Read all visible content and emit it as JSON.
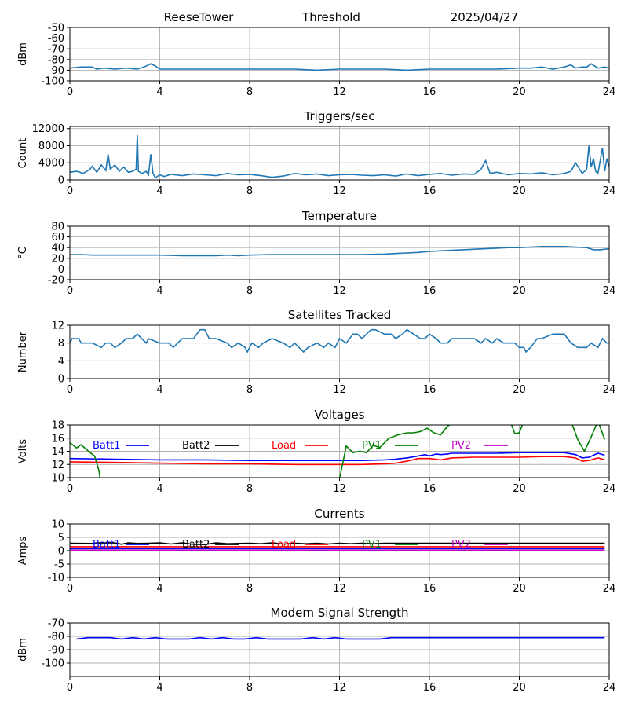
{
  "header": {
    "station": "ReeseTower",
    "label": "Threshold",
    "date": "2025/04/27"
  },
  "colors": {
    "default": "#1f77b4",
    "batt1": "#0000ff",
    "batt2": "#000000",
    "load": "#ff0000",
    "pv1": "#008000",
    "pv2": "#bf00bf"
  },
  "chart_data": [
    {
      "type": "line",
      "title": "",
      "ylabel": "dBm",
      "xlim": [
        0,
        24
      ],
      "ylim": [
        -100,
        -50
      ],
      "xticks": [
        0,
        4,
        8,
        12,
        16,
        20,
        24
      ],
      "yticks": [
        -100,
        -90,
        -80,
        -70,
        -60,
        -50
      ],
      "grid": true,
      "series": [
        {
          "color": "#1f77b4",
          "x": [
            0,
            0.5,
            1.0,
            1.2,
            1.5,
            2.0,
            2.5,
            3.0,
            3.3,
            3.6,
            3.8,
            4.0,
            4.3,
            5,
            6,
            7,
            8,
            9,
            10,
            11,
            12,
            13,
            14,
            15,
            16,
            17,
            18,
            19,
            20,
            20.5,
            21,
            21.5,
            22,
            22.3,
            22.5,
            22.8,
            23.0,
            23.2,
            23.5,
            23.8,
            24
          ],
          "y": [
            -88,
            -87,
            -87,
            -89,
            -88,
            -89,
            -88,
            -89,
            -87,
            -84,
            -86,
            -89,
            -89,
            -89,
            -89,
            -89,
            -89,
            -89,
            -89,
            -90,
            -89,
            -89,
            -89,
            -90,
            -89,
            -89,
            -89,
            -89,
            -88,
            -88,
            -87,
            -89,
            -87,
            -85,
            -88,
            -87,
            -87,
            -84,
            -88,
            -87,
            -88
          ]
        }
      ]
    },
    {
      "type": "line",
      "title": "Triggers/sec",
      "ylabel": "Count",
      "xlim": [
        0,
        24
      ],
      "ylim": [
        0,
        12500
      ],
      "xticks": [
        0,
        4,
        8,
        12,
        16,
        20,
        24
      ],
      "yticks": [
        0,
        4000,
        8000,
        12000
      ],
      "grid": true,
      "series": [
        {
          "color": "#1f77b4",
          "x": [
            0,
            0.3,
            0.6,
            0.9,
            1.0,
            1.2,
            1.4,
            1.6,
            1.7,
            1.8,
            2.0,
            2.2,
            2.4,
            2.6,
            2.8,
            2.95,
            3.0,
            3.05,
            3.2,
            3.4,
            3.5,
            3.6,
            3.7,
            3.8,
            4.0,
            4.2,
            4.5,
            5,
            5.5,
            6,
            6.5,
            7,
            7.5,
            8,
            8.5,
            9,
            9.5,
            10,
            10.5,
            11,
            11.5,
            12,
            12.5,
            13,
            13.5,
            14,
            14.5,
            15,
            15.5,
            16,
            16.5,
            17,
            17.5,
            18,
            18.3,
            18.5,
            18.7,
            19,
            19.5,
            20,
            20.5,
            21,
            21.5,
            22,
            22.3,
            22.5,
            22.8,
            23.0,
            23.1,
            23.2,
            23.3,
            23.4,
            23.5,
            23.7,
            23.8,
            23.9,
            24
          ],
          "y": [
            1800,
            2000,
            1500,
            2500,
            3200,
            1800,
            3500,
            2200,
            6000,
            2500,
            3500,
            2000,
            3000,
            1800,
            2000,
            2500,
            10500,
            2000,
            1500,
            2000,
            1200,
            6000,
            1500,
            500,
            1200,
            800,
            1300,
            1000,
            1400,
            1200,
            1000,
            1500,
            1200,
            1300,
            1000,
            600,
            900,
            1500,
            1200,
            1400,
            1000,
            1200,
            1300,
            1100,
            1000,
            1200,
            900,
            1400,
            1000,
            1300,
            1500,
            1100,
            1400,
            1300,
            2500,
            4500,
            1500,
            1800,
            1200,
            1500,
            1400,
            1700,
            1200,
            1500,
            2000,
            4000,
            1500,
            2500,
            8000,
            3000,
            5000,
            2000,
            1500,
            7500,
            2000,
            5000,
            3000
          ]
        }
      ]
    },
    {
      "type": "line",
      "title": "Temperature",
      "ylabel": "°C",
      "xlim": [
        0,
        24
      ],
      "ylim": [
        -20,
        80
      ],
      "xticks": [
        0,
        4,
        8,
        12,
        16,
        20,
        24
      ],
      "yticks": [
        -20,
        0,
        20,
        40,
        60,
        80
      ],
      "grid": true,
      "series": [
        {
          "color": "#1f77b4",
          "x": [
            0,
            0.5,
            1,
            2,
            3,
            4,
            5,
            6,
            6.5,
            7,
            7.5,
            8,
            9,
            10,
            11,
            12,
            13,
            14,
            14.5,
            15,
            15.5,
            16,
            16.5,
            17,
            17.5,
            18,
            18.5,
            19,
            19.5,
            20,
            20.5,
            21,
            21.5,
            22,
            22.5,
            23,
            23.3,
            23.6,
            24
          ],
          "y": [
            27,
            27,
            26,
            26,
            26,
            26,
            25,
            25,
            25,
            26,
            25,
            26,
            27,
            27,
            27,
            27,
            27,
            28,
            29,
            30,
            31,
            33,
            34,
            35,
            36,
            37,
            38,
            39,
            40,
            40,
            41,
            42,
            42,
            42,
            41,
            40,
            36,
            36,
            38
          ]
        }
      ]
    },
    {
      "type": "line",
      "title": "Satellites Tracked",
      "ylabel": "Number",
      "xlim": [
        0,
        24
      ],
      "ylim": [
        0,
        12
      ],
      "xticks": [
        0,
        4,
        8,
        12,
        16,
        20,
        24
      ],
      "yticks": [
        0,
        4,
        8,
        12
      ],
      "grid": true,
      "series": [
        {
          "color": "#1f77b4",
          "x": [
            0,
            0.1,
            0.4,
            0.5,
            1.0,
            1.4,
            1.6,
            1.8,
            2.0,
            2.3,
            2.5,
            2.8,
            3.0,
            3.2,
            3.4,
            3.5,
            4.0,
            4.4,
            4.6,
            5.0,
            5.5,
            5.8,
            6.0,
            6.2,
            6.5,
            7.0,
            7.2,
            7.5,
            7.8,
            7.9,
            8.0,
            8.1,
            8.4,
            8.6,
            9.0,
            9.5,
            9.8,
            10.0,
            10.4,
            10.6,
            11.0,
            11.3,
            11.5,
            11.8,
            12.0,
            12.3,
            12.6,
            12.8,
            13.0,
            13.4,
            13.6,
            14.0,
            14.3,
            14.5,
            14.8,
            15.0,
            15.3,
            15.6,
            15.8,
            16.0,
            16.3,
            16.5,
            16.8,
            17.0,
            17.5,
            18.0,
            18.3,
            18.5,
            18.8,
            19.0,
            19.3,
            19.5,
            19.8,
            20.0,
            20.2,
            20.3,
            20.5,
            20.8,
            21.0,
            21.5,
            22.0,
            22.3,
            22.6,
            23.0,
            23.2,
            23.5,
            23.7,
            23.9,
            24
          ],
          "y": [
            8,
            9,
            9,
            8,
            8,
            7,
            8,
            8,
            7,
            8,
            9,
            9,
            10,
            9,
            8,
            9,
            8,
            8,
            7,
            9,
            9,
            11,
            11,
            9,
            9,
            8,
            7,
            8,
            7,
            6,
            7,
            8,
            7,
            8,
            9,
            8,
            7,
            8,
            6,
            7,
            8,
            7,
            8,
            7,
            9,
            8,
            10,
            10,
            9,
            11,
            11,
            10,
            10,
            9,
            10,
            11,
            10,
            9,
            9,
            10,
            9,
            8,
            8,
            9,
            9,
            9,
            8,
            9,
            8,
            9,
            8,
            8,
            8,
            7,
            7,
            6,
            7,
            9,
            9,
            10,
            10,
            8,
            7,
            7,
            8,
            7,
            9,
            8,
            8
          ]
        }
      ]
    },
    {
      "type": "line",
      "title": "Voltages",
      "ylabel": "Volts",
      "xlim": [
        0,
        24
      ],
      "ylim": [
        10,
        18
      ],
      "xticks": [
        0,
        4,
        8,
        12,
        16,
        20,
        24
      ],
      "yticks": [
        10,
        12,
        14,
        16,
        18
      ],
      "grid": true,
      "legend": [
        "Batt1",
        "Batt2",
        "Load",
        "PV1",
        "PV2"
      ],
      "series": [
        {
          "name": "Batt1",
          "color": "#0000ff",
          "x": [
            0,
            2,
            4,
            6,
            8,
            10,
            12,
            13,
            14,
            14.5,
            15,
            15.5,
            15.8,
            16,
            16.3,
            16.5,
            16.8,
            17,
            18,
            19,
            20,
            21,
            22,
            22.5,
            22.8,
            23.1,
            23.5,
            23.8
          ],
          "y": [
            12.9,
            12.8,
            12.7,
            12.7,
            12.6,
            12.6,
            12.6,
            12.6,
            12.7,
            12.8,
            13.0,
            13.3,
            13.5,
            13.3,
            13.6,
            13.5,
            13.6,
            13.7,
            13.7,
            13.7,
            13.8,
            13.8,
            13.8,
            13.5,
            13.0,
            13.1,
            13.7,
            13.4
          ]
        },
        {
          "name": "Load",
          "color": "#ff0000",
          "x": [
            0,
            2,
            4,
            6,
            8,
            10,
            12,
            13,
            14,
            14.5,
            15,
            15.5,
            16,
            16.5,
            17,
            18,
            19,
            20,
            21,
            22,
            22.5,
            22.8,
            23.1,
            23.5,
            23.8
          ],
          "y": [
            12.4,
            12.3,
            12.2,
            12.1,
            12.1,
            12.0,
            12.0,
            12.0,
            12.1,
            12.2,
            12.5,
            12.9,
            12.9,
            12.7,
            13.0,
            13.1,
            13.1,
            13.1,
            13.2,
            13.2,
            13.0,
            12.5,
            12.6,
            13.0,
            12.7
          ]
        },
        {
          "name": "PV1",
          "color": "#008000",
          "x": [
            0,
            0.3,
            0.5,
            0.9,
            1.1,
            1.3,
            1.35,
            12.0,
            12.3,
            12.6,
            12.9,
            13.2,
            13.5,
            13.8,
            14.2,
            14.6,
            15.0,
            15.3,
            15.6,
            15.9,
            16.2,
            16.5,
            16.8,
            17.1,
            19.6,
            19.8,
            20.0,
            20.2,
            20.4,
            22.3,
            22.6,
            22.9,
            23.2,
            23.5,
            23.8
          ],
          "y": [
            15.3,
            14.5,
            15.0,
            13.8,
            13.3,
            11.0,
            9.8,
            9.8,
            14.8,
            13.8,
            14.0,
            13.8,
            14.9,
            14.6,
            16.0,
            16.5,
            16.8,
            16.8,
            17.0,
            17.5,
            16.8,
            16.5,
            17.8,
            18.5,
            18.5,
            16.7,
            16.8,
            18.6,
            18.6,
            18.6,
            15.8,
            14.0,
            16.2,
            18.6,
            15.8
          ]
        }
      ]
    },
    {
      "type": "line",
      "title": "Currents",
      "ylabel": "Amps",
      "xlim": [
        0,
        24
      ],
      "ylim": [
        -10,
        10
      ],
      "xticks": [
        0,
        4,
        8,
        12,
        16,
        20,
        24
      ],
      "yticks": [
        -10,
        -5,
        0,
        5,
        10
      ],
      "grid": true,
      "legend": [
        "Batt1",
        "Batt2",
        "Load",
        "PV1",
        "PV2"
      ],
      "series": [
        {
          "name": "Batt2",
          "color": "#000000",
          "x": [
            0,
            1,
            1.2,
            2,
            2.3,
            2.6,
            3,
            3.5,
            4,
            4.5,
            5,
            5.5,
            6,
            6.5,
            7,
            7.5,
            8,
            8.5,
            9,
            9.5,
            10,
            10.5,
            11,
            11.5,
            12,
            12.5,
            13,
            13.5,
            14,
            15,
            16,
            17,
            18,
            19,
            20,
            21,
            22,
            23,
            23.8
          ],
          "y": [
            2.8,
            2.7,
            2.9,
            2.9,
            2.4,
            2.9,
            2.7,
            2.8,
            2.9,
            2.5,
            2.9,
            2.4,
            2.3,
            2.9,
            2.6,
            2.7,
            2.8,
            2.6,
            2.9,
            2.5,
            2.8,
            2.6,
            2.8,
            2.5,
            2.8,
            2.6,
            2.8,
            2.6,
            2.8,
            2.8,
            2.8,
            2.8,
            2.8,
            2.8,
            2.8,
            2.8,
            2.8,
            2.8,
            2.8
          ]
        },
        {
          "name": "Load",
          "color": "#ff0000",
          "x": [
            0,
            23.8
          ],
          "y": [
            1.5,
            1.5
          ]
        },
        {
          "name": "Batt1",
          "color": "#0000ff",
          "x": [
            0,
            23.8
          ],
          "y": [
            0.8,
            0.8
          ]
        },
        {
          "name": "PV2",
          "color": "#bf00bf",
          "x": [
            0,
            23.8
          ],
          "y": [
            0.2,
            0.2
          ]
        }
      ]
    },
    {
      "type": "line",
      "title": "Modem Signal Strength",
      "ylabel": "dBm",
      "xlim": [
        0,
        24
      ],
      "ylim": [
        -110,
        -70
      ],
      "xticks": [
        0,
        4,
        8,
        12,
        16,
        20,
        24
      ],
      "yticks": [
        -100,
        -90,
        -80,
        -70
      ],
      "grid": true,
      "series": [
        {
          "color": "#0000ff",
          "x": [
            0.3,
            0.8,
            1.8,
            2.3,
            2.8,
            3.3,
            3.8,
            4.3,
            5.3,
            5.8,
            6.3,
            6.8,
            7.3,
            7.8,
            8.3,
            8.8,
            10.3,
            10.8,
            11.3,
            11.8,
            12.3,
            13.3,
            13.8,
            14.3,
            23.8
          ],
          "y": [
            -82,
            -81,
            -81,
            -82,
            -81,
            -82,
            -81,
            -82,
            -82,
            -81,
            -82,
            -81,
            -82,
            -82,
            -81,
            -82,
            -82,
            -81,
            -82,
            -81,
            -82,
            -82,
            -82,
            -81,
            -81
          ]
        }
      ]
    }
  ]
}
